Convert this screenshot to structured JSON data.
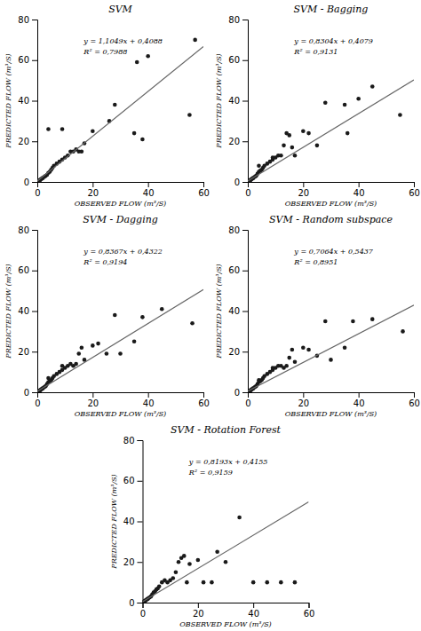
{
  "chart_data": [
    {
      "type": "scatter",
      "title": "SVM",
      "annotations": [
        "y = 1,1049x + 0,4088",
        "R² = 0,7988"
      ],
      "xlabel": "OBSERVED FLOW (m³/S)",
      "ylabel": "PREDICTED FLOW (m³/S)",
      "xlim": [
        0,
        60
      ],
      "ylim": [
        0,
        80
      ],
      "xticks": [
        0,
        20,
        40,
        60
      ],
      "yticks": [
        0,
        20,
        40,
        60,
        80
      ],
      "grid": false,
      "series": [
        {
          "type": "scatter",
          "color": "#1a1a1a",
          "x": [
            0.3,
            0.5,
            0.8,
            1.0,
            1.2,
            1.5,
            1.8,
            2.0,
            2.5,
            3.0,
            3.5,
            4.0,
            4.5,
            5.0,
            5.5,
            6.0,
            7.0,
            8.0,
            9.0,
            10.0,
            11.0,
            12.0,
            13.0,
            14.0,
            15.0,
            16.0,
            17.0,
            4.0,
            9.0,
            20.0,
            26.0,
            28.0,
            35.0,
            36.0,
            40.0,
            55.0,
            38.0,
            57.0
          ],
          "values": [
            0.3,
            0.5,
            0.8,
            1.0,
            1.2,
            1.5,
            1.8,
            2.0,
            2.5,
            3.0,
            3.5,
            4.5,
            5.0,
            6.0,
            7.0,
            8.0,
            9.0,
            10.0,
            11.0,
            12.0,
            13.0,
            15.0,
            15.0,
            16.0,
            15.0,
            15.0,
            19.0,
            26.0,
            26.0,
            25.0,
            30.0,
            38.0,
            24.0,
            59.0,
            62.0,
            33.0,
            21.0,
            70.0
          ]
        },
        {
          "type": "line",
          "color": "#666666",
          "x": [
            0,
            60
          ],
          "values": [
            0.4088,
            66.7028
          ]
        }
      ]
    },
    {
      "type": "scatter",
      "title": "SVM - Bagging",
      "annotations": [
        "y = 0,8304x + 0,4079",
        "R² = 0,9131"
      ],
      "xlabel": "OBSERVED FLOW (m³/S)",
      "ylabel": "PREDICTED FLOW (m³/S)",
      "xlim": [
        0,
        60
      ],
      "ylim": [
        0,
        80
      ],
      "xticks": [
        0,
        20,
        40,
        60
      ],
      "yticks": [
        0,
        20,
        40,
        60,
        80
      ],
      "grid": false,
      "series": [
        {
          "type": "scatter",
          "color": "#1a1a1a",
          "x": [
            0.3,
            0.5,
            0.8,
            1.0,
            1.2,
            1.5,
            1.8,
            2.0,
            2.5,
            3.0,
            3.5,
            4.0,
            4.5,
            5.0,
            5.5,
            6.0,
            7.0,
            8.0,
            9.0,
            10.0,
            11.0,
            12.0,
            13.0,
            14.0,
            15.0,
            16.0,
            17.0,
            4.0,
            9.0,
            20.0,
            25.0,
            28.0,
            35.0,
            36.0,
            40.0,
            55.0,
            22.0,
            45.0
          ],
          "values": [
            0.3,
            0.5,
            0.8,
            1.0,
            1.2,
            1.5,
            1.8,
            2.0,
            2.5,
            3.0,
            4.0,
            5.0,
            5.5,
            6.0,
            7.0,
            8.0,
            9.0,
            10.0,
            11.0,
            12.0,
            13.0,
            13.0,
            18.0,
            24.0,
            23.0,
            17.0,
            13.0,
            8.0,
            12.0,
            25.0,
            18.0,
            39.0,
            38.0,
            24.0,
            41.0,
            33.0,
            24.0,
            47.0
          ]
        },
        {
          "type": "line",
          "color": "#666666",
          "x": [
            0,
            60
          ],
          "values": [
            0.4079,
            50.2319
          ]
        }
      ]
    },
    {
      "type": "scatter",
      "title": "SVM - Dagging",
      "annotations": [
        "y = 0,8367x + 0,4322",
        "R² = 0,9194"
      ],
      "xlabel": "OBSERVED FLOW (m³/S)",
      "ylabel": "PREDICTED FLOW (m³/S)",
      "xlim": [
        0,
        60
      ],
      "ylim": [
        0,
        80
      ],
      "xticks": [
        0,
        20,
        40,
        60
      ],
      "yticks": [
        0,
        20,
        40,
        60,
        80
      ],
      "grid": false,
      "series": [
        {
          "type": "scatter",
          "color": "#1a1a1a",
          "x": [
            0.3,
            0.5,
            0.8,
            1.0,
            1.2,
            1.5,
            1.8,
            2.0,
            2.5,
            3.0,
            3.5,
            4.0,
            4.5,
            5.0,
            5.5,
            6.0,
            7.0,
            8.0,
            9.0,
            10.0,
            11.0,
            12.0,
            13.0,
            14.0,
            15.0,
            16.0,
            17.0,
            4.0,
            9.0,
            20.0,
            25.0,
            28.0,
            35.0,
            38.0,
            45.0,
            56.0,
            22.0,
            30.0
          ],
          "values": [
            0.3,
            0.5,
            0.8,
            1.0,
            1.2,
            1.5,
            1.8,
            2.0,
            2.5,
            3.0,
            4.0,
            5.0,
            5.5,
            6.0,
            7.0,
            8.0,
            9.0,
            10.0,
            11.0,
            12.0,
            13.0,
            14.0,
            13.0,
            14.0,
            19.0,
            22.0,
            16.0,
            7.0,
            13.0,
            23.0,
            19.0,
            38.0,
            25.0,
            37.0,
            41.0,
            34.0,
            24.0,
            19.0
          ]
        },
        {
          "type": "line",
          "color": "#666666",
          "x": [
            0,
            60
          ],
          "values": [
            0.4322,
            50.6342
          ]
        }
      ]
    },
    {
      "type": "scatter",
      "title": "SVM - Random subspace",
      "annotations": [
        "y = 0,7064x + 0,5437",
        "R² = 0,8951"
      ],
      "xlabel": "OBSERVED FLOW (m³/S)",
      "ylabel": "PREDICTED FLOW (m³/S)",
      "xlim": [
        0,
        60
      ],
      "ylim": [
        0,
        80
      ],
      "xticks": [
        0,
        20,
        40,
        60
      ],
      "yticks": [
        0,
        20,
        40,
        60,
        80
      ],
      "grid": false,
      "series": [
        {
          "type": "scatter",
          "color": "#1a1a1a",
          "x": [
            0.3,
            0.5,
            0.8,
            1.0,
            1.2,
            1.5,
            1.8,
            2.0,
            2.5,
            3.0,
            3.5,
            4.0,
            4.5,
            5.0,
            5.5,
            6.0,
            7.0,
            8.0,
            9.0,
            10.0,
            11.0,
            12.0,
            13.0,
            14.0,
            15.0,
            16.0,
            17.0,
            4.0,
            9.0,
            20.0,
            25.0,
            28.0,
            35.0,
            38.0,
            45.0,
            56.0,
            22.0,
            30.0
          ],
          "values": [
            0.3,
            0.5,
            0.8,
            1.0,
            1.2,
            1.5,
            1.8,
            2.0,
            2.5,
            3.0,
            4.0,
            5.0,
            5.5,
            6.0,
            7.0,
            8.0,
            9.0,
            10.0,
            11.0,
            12.0,
            13.0,
            13.0,
            12.0,
            13.0,
            17.0,
            21.0,
            15.0,
            6.0,
            12.0,
            22.0,
            18.0,
            35.0,
            22.0,
            35.0,
            36.0,
            30.0,
            21.0,
            16.0
          ]
        },
        {
          "type": "line",
          "color": "#666666",
          "x": [
            0,
            60
          ],
          "values": [
            0.5437,
            42.9277
          ]
        }
      ]
    },
    {
      "type": "scatter",
      "title": "SVM - Rotation Forest",
      "annotations": [
        "y = 0,8193x + 0,4155",
        "R² = 0,9159"
      ],
      "xlabel": "OBSERVED FLOW (m³/S)",
      "ylabel": "PREDICTED FLOW (m³/S)",
      "xlim": [
        0,
        60
      ],
      "ylim": [
        0,
        80
      ],
      "xticks": [
        0,
        20,
        40,
        60
      ],
      "yticks": [
        0,
        20,
        40,
        60,
        80
      ],
      "grid": false,
      "series": [
        {
          "type": "scatter",
          "color": "#1a1a1a",
          "x": [
            0.3,
            0.5,
            0.8,
            1.0,
            1.2,
            1.5,
            1.8,
            2.0,
            2.5,
            3.0,
            3.5,
            4.0,
            4.5,
            5.0,
            5.5,
            6.0,
            7.0,
            8.0,
            9.0,
            10.0,
            11.0,
            12.0,
            13.0,
            14.0,
            15.0,
            16.0,
            17.0,
            20.0,
            22.0,
            25.0,
            27.0,
            30.0,
            35.0,
            40.0,
            45.0,
            50.0,
            55.0
          ],
          "values": [
            0.3,
            0.5,
            0.8,
            1.0,
            1.2,
            1.5,
            1.8,
            2.0,
            2.5,
            3.0,
            4.0,
            5.0,
            5.5,
            6.5,
            7.0,
            8.0,
            10.0,
            11.0,
            10.0,
            11.0,
            12.0,
            15.0,
            20.0,
            22.0,
            23.0,
            10.0,
            19.0,
            21.0,
            10.0,
            10.0,
            25.0,
            20.0,
            42.0,
            10.0,
            10.0,
            10.0,
            10.0
          ]
        },
        {
          "type": "line",
          "color": "#666666",
          "x": [
            0,
            60
          ],
          "values": [
            0.4155,
            49.5735
          ]
        }
      ]
    }
  ]
}
